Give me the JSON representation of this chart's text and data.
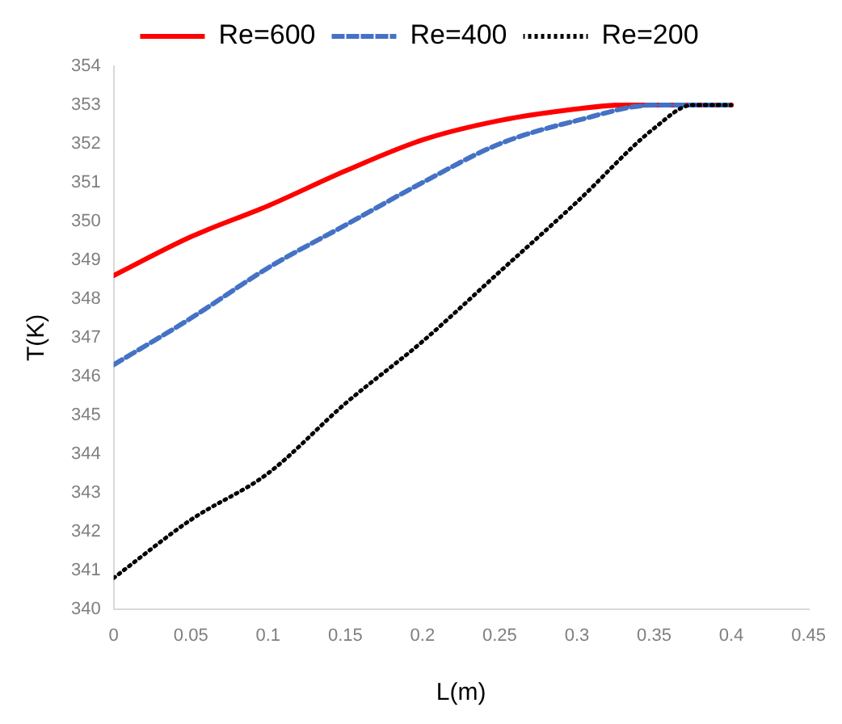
{
  "chart_data": {
    "type": "line",
    "xlabel": "L(m)",
    "ylabel": "T(K)",
    "legend": "top",
    "grid": false,
    "marker": "none",
    "xlim": [
      0,
      0.45
    ],
    "xticks": [
      0,
      0.05,
      0.1,
      0.15,
      0.2,
      0.25,
      0.3,
      0.35,
      0.4,
      0.45
    ],
    "ylim": [
      340,
      354
    ],
    "yticks": [
      340,
      341,
      342,
      343,
      344,
      345,
      346,
      347,
      348,
      349,
      350,
      351,
      352,
      353,
      354
    ],
    "series": [
      {
        "name": "Re=600",
        "color": "#ff0000",
        "line_style": "solid",
        "x": [
          0,
          0.05,
          0.1,
          0.15,
          0.2,
          0.25,
          0.3,
          0.33,
          0.35,
          0.4
        ],
        "values": [
          348.6,
          349.6,
          350.4,
          351.3,
          352.1,
          352.6,
          352.9,
          353,
          353,
          353
        ]
      },
      {
        "name": "Re=400",
        "color": "#4472c4",
        "line_style": "dashed",
        "x": [
          0,
          0.05,
          0.1,
          0.15,
          0.2,
          0.25,
          0.3,
          0.35,
          0.4
        ],
        "values": [
          346.3,
          347.5,
          348.8,
          349.9,
          351.0,
          352.0,
          352.6,
          353,
          353
        ]
      },
      {
        "name": "Re=200",
        "color": "#000000",
        "line_style": "dotted",
        "x": [
          0,
          0.05,
          0.1,
          0.15,
          0.2,
          0.25,
          0.3,
          0.35,
          0.375,
          0.4
        ],
        "values": [
          340.8,
          342.3,
          343.5,
          345.3,
          346.9,
          348.7,
          350.5,
          352.4,
          353,
          353
        ]
      }
    ]
  }
}
